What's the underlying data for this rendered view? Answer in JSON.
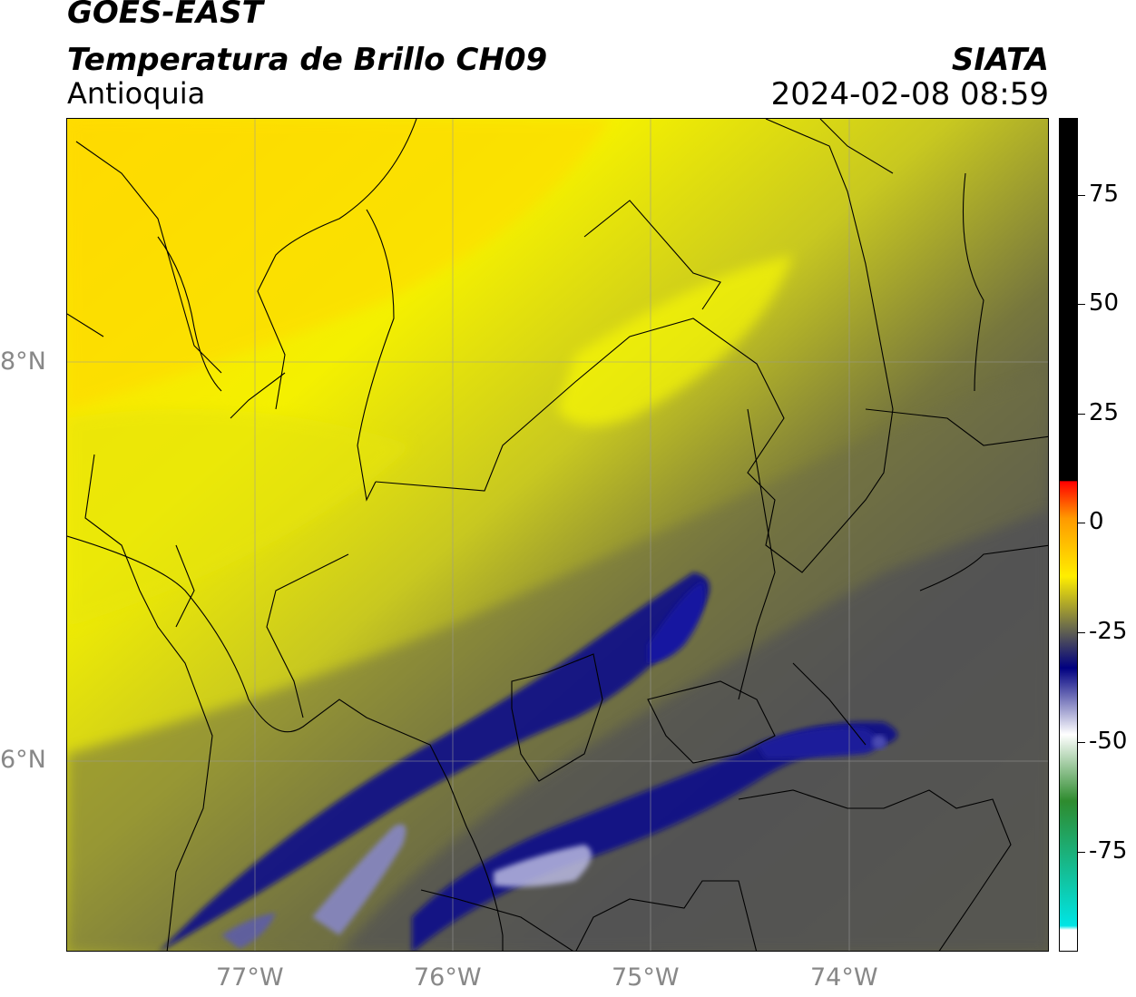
{
  "header": {
    "satellite": "GOES-EAST",
    "product": "Temperatura de Brillo CH09",
    "region": "Antioquia",
    "source": "SIATA",
    "datetime": "2024-02-08 08:59"
  },
  "map": {
    "lat_labels": [
      "8°N",
      "6°N"
    ],
    "lon_labels": [
      "77°W",
      "76°W",
      "75°W",
      "74°W"
    ]
  },
  "colorbar": {
    "ticks": [
      "75",
      "50",
      "25",
      "0",
      "-25",
      "-50",
      "-75"
    ],
    "colors": {
      "black": "#000000",
      "red": "#ff0000",
      "orange": "#ff9900",
      "yellow": "#ffee00",
      "olive": "#6e6e4a",
      "navy": "#000080",
      "white": "#ffffff",
      "green": "#2e8b2e",
      "cyan": "#00e5e5"
    }
  }
}
